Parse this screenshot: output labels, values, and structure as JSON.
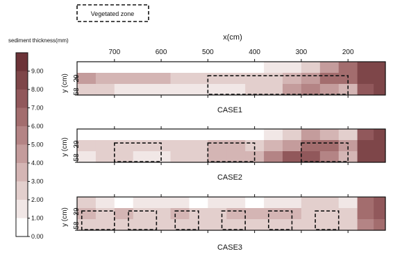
{
  "legend_box": {
    "label": "Vegetated zone"
  },
  "colorbar": {
    "title": "sediment thickness(mm)",
    "ticks": [
      "9.00",
      "8.00",
      "7.00",
      "6.00",
      "5.00",
      "4.00",
      "3.00",
      "2.00",
      "1.00",
      "0.00"
    ],
    "colors": [
      "#6c3338",
      "#7e4649",
      "#91585b",
      "#a36d6e",
      "#b48485",
      "#c49c9c",
      "#d4b5b4",
      "#e3cfcd",
      "#f1e7e6",
      "#ffffff"
    ]
  },
  "chart_data": [
    {
      "type": "heatmap",
      "title": "CASE1",
      "xlabel": "x(cm)",
      "ylabel": "y (cm)",
      "x_ticks": [
        "700",
        "600",
        "500",
        "400",
        "300",
        "200"
      ],
      "y_ticks": [
        "29",
        "58"
      ],
      "xlim": [
        780,
        120
      ],
      "ylim": [
        0,
        58
      ],
      "value_range": [
        0,
        10
      ],
      "vegetated_zones_x": [
        [
          500,
          200
        ]
      ],
      "columns_x": [
        760,
        720,
        680,
        640,
        600,
        560,
        520,
        480,
        440,
        400,
        360,
        320,
        280,
        240,
        200,
        160,
        130
      ],
      "rows_y": [
        "top",
        "middle",
        "bottom"
      ],
      "grid": [
        [
          0.5,
          0.5,
          0.5,
          0.5,
          0.5,
          0.5,
          0.5,
          0.5,
          1.0,
          1.0,
          1.5,
          2.0,
          3.0,
          5.0,
          6.5,
          8.5,
          9.0
        ],
        [
          4.5,
          4.0,
          4.0,
          3.5,
          3.5,
          3.0,
          3.0,
          2.5,
          2.5,
          3.0,
          3.0,
          3.5,
          5.0,
          6.5,
          7.0,
          8.5,
          9.0
        ],
        [
          2.5,
          2.5,
          2.0,
          2.0,
          2.0,
          2.0,
          2.0,
          2.0,
          2.0,
          2.5,
          3.0,
          4.5,
          5.5,
          5.0,
          4.0,
          8.0,
          8.5
        ]
      ]
    },
    {
      "type": "heatmap",
      "title": "CASE2",
      "xlabel": "",
      "ylabel": "y (cm)",
      "x_ticks": [],
      "y_ticks": [
        "29",
        "58"
      ],
      "xlim": [
        780,
        120
      ],
      "ylim": [
        0,
        58
      ],
      "value_range": [
        0,
        10
      ],
      "vegetated_zones_x": [
        [
          700,
          600
        ],
        [
          500,
          400
        ],
        [
          300,
          200
        ]
      ],
      "columns_x": [
        760,
        720,
        680,
        640,
        600,
        560,
        520,
        480,
        440,
        400,
        360,
        320,
        280,
        240,
        200,
        160,
        130
      ],
      "rows_y": [
        "top",
        "middle",
        "bottom"
      ],
      "grid": [
        [
          0.5,
          0.5,
          0.5,
          0.5,
          0.5,
          0.5,
          0.5,
          0.5,
          0.5,
          1.0,
          1.5,
          3.0,
          4.5,
          4.0,
          2.5,
          8.0,
          8.5
        ],
        [
          3.0,
          3.0,
          3.0,
          2.5,
          2.5,
          2.5,
          3.0,
          3.5,
          3.5,
          3.0,
          3.5,
          5.0,
          6.5,
          6.5,
          5.0,
          8.5,
          9.0
        ],
        [
          2.0,
          2.5,
          2.5,
          2.0,
          2.0,
          2.5,
          3.0,
          3.5,
          3.5,
          4.0,
          5.5,
          8.0,
          7.5,
          6.0,
          4.0,
          8.5,
          9.0
        ]
      ]
    },
    {
      "type": "heatmap",
      "title": "CASE3",
      "xlabel": "",
      "ylabel": "y (cm)",
      "x_ticks": [],
      "y_ticks": [
        "29",
        "58"
      ],
      "xlim": [
        780,
        120
      ],
      "ylim": [
        0,
        58
      ],
      "value_range": [
        0,
        10
      ],
      "vegetated_zones_x": [
        [
          770,
          700
        ],
        [
          670,
          610
        ],
        [
          570,
          520
        ],
        [
          470,
          420
        ],
        [
          370,
          320
        ],
        [
          270,
          220
        ]
      ],
      "columns_x": [
        760,
        720,
        680,
        640,
        600,
        560,
        520,
        480,
        440,
        400,
        360,
        320,
        280,
        240,
        200,
        160,
        130
      ],
      "rows_y": [
        "top",
        "middle",
        "bottom"
      ],
      "grid": [
        [
          2.5,
          2.0,
          1.0,
          1.5,
          2.0,
          1.5,
          1.0,
          2.0,
          1.5,
          1.0,
          1.5,
          2.0,
          2.5,
          3.0,
          2.0,
          7.0,
          8.0
        ],
        [
          3.5,
          3.0,
          3.5,
          3.0,
          3.0,
          3.5,
          3.0,
          3.0,
          3.5,
          3.5,
          3.5,
          3.5,
          3.0,
          3.0,
          2.5,
          6.5,
          7.5
        ],
        [
          3.0,
          2.5,
          3.0,
          2.5,
          2.5,
          3.0,
          3.0,
          2.5,
          3.0,
          3.0,
          3.0,
          3.0,
          3.0,
          2.5,
          2.5,
          6.0,
          7.0
        ]
      ]
    }
  ]
}
